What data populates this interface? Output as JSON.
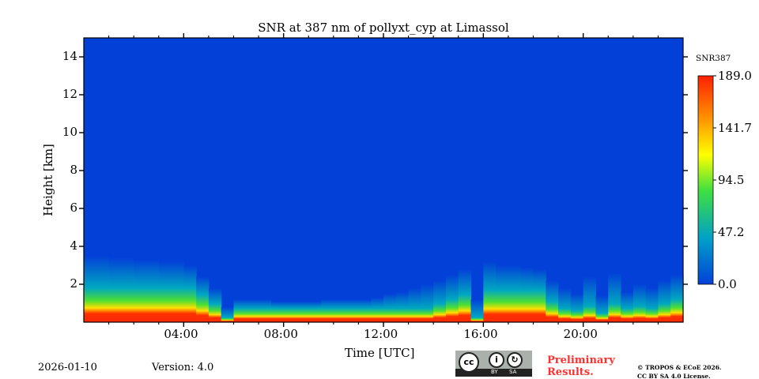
{
  "chart_data": {
    "type": "heatmap",
    "title": "SNR at 387 nm of pollyxt_cyp at Limassol",
    "xlabel": "Time [UTC]",
    "ylabel": "Height [km]",
    "xlim_hours": [
      0,
      24
    ],
    "ylim": [
      0,
      15
    ],
    "x_tick_labels": [
      "04:00",
      "08:00",
      "12:00",
      "16:00",
      "20:00"
    ],
    "x_tick_hours": [
      4,
      8,
      12,
      16,
      20
    ],
    "y_ticks": [
      2,
      4,
      6,
      8,
      10,
      12,
      14
    ],
    "colorbar": {
      "label": "SNR387",
      "range": [
        0.0,
        189.0
      ],
      "tick_labels": [
        "189.0",
        "141.7",
        "94.5",
        "47.2",
        "0.0"
      ],
      "colors": [
        "#0340d8",
        "#00a0c8",
        "#40e040",
        "#ffff00",
        "#ff9000",
        "#ff2000"
      ]
    },
    "background_color": "#0340d8",
    "time_step_hours": 0.5,
    "strong_signal_top_km": [
      0.75,
      0.75,
      0.75,
      0.75,
      0.75,
      0.75,
      0.75,
      0.75,
      0.75,
      0.6,
      0.4,
      0.1,
      0.3,
      0.3,
      0.3,
      0.3,
      0.3,
      0.3,
      0.3,
      0.3,
      0.3,
      0.3,
      0.3,
      0.3,
      0.3,
      0.3,
      0.3,
      0.3,
      0.4,
      0.5,
      0.6,
      0.1,
      0.7,
      0.7,
      0.7,
      0.7,
      0.7,
      0.45,
      0.3,
      0.25,
      0.35,
      0.2,
      0.4,
      0.3,
      0.35,
      0.3,
      0.4,
      0.5
    ],
    "weak_signal_top_km": [
      3.5,
      3.5,
      3.4,
      3.4,
      3.3,
      3.3,
      3.2,
      3.2,
      3.0,
      2.4,
      1.8,
      0.8,
      1.2,
      1.2,
      1.2,
      1.1,
      1.1,
      1.1,
      1.1,
      1.2,
      1.2,
      1.2,
      1.2,
      1.3,
      1.5,
      1.6,
      1.8,
      2.0,
      2.2,
      2.5,
      2.8,
      1.2,
      3.2,
      3.0,
      3.0,
      2.9,
      2.8,
      2.2,
      1.8,
      1.5,
      2.4,
      1.4,
      2.6,
      1.6,
      2.0,
      1.8,
      2.2,
      2.5
    ]
  },
  "footer": {
    "date": "2026-01-10",
    "version": "Version: 4.0",
    "preliminary": [
      "Preliminary",
      "Results."
    ],
    "copyright": [
      "© TROPOS & ECoE 2026.",
      "CC BY SA 4.0 License."
    ],
    "license_badge": [
      "BY",
      "SA"
    ]
  }
}
